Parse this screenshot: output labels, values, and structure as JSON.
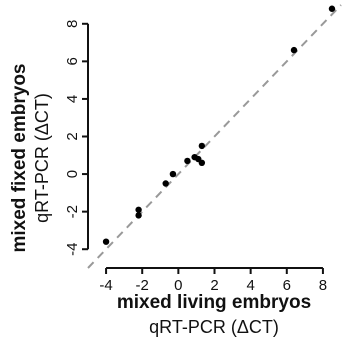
{
  "chart_data": {
    "type": "scatter",
    "xlabel": "mixed living embryos",
    "xlabel_sub": "qRT-PCR (ΔCT)",
    "ylabel": "mixed fixed embryos",
    "ylabel_sub": "qRT-PCR (ΔCT)",
    "xlim": [
      -5,
      9
    ],
    "ylim": [
      -5,
      9
    ],
    "x_ticks": [
      -4,
      -2,
      0,
      2,
      4,
      6,
      8
    ],
    "y_ticks": [
      -4,
      -2,
      0,
      2,
      4,
      6,
      8
    ],
    "grid": false,
    "reference_line": "y = x (dashed)",
    "points": [
      {
        "x": -4.0,
        "y": -3.6
      },
      {
        "x": -2.2,
        "y": -1.9
      },
      {
        "x": -2.2,
        "y": -2.2
      },
      {
        "x": -0.7,
        "y": -0.5
      },
      {
        "x": -0.3,
        "y": 0.0
      },
      {
        "x": 0.5,
        "y": 0.7
      },
      {
        "x": 0.9,
        "y": 0.9
      },
      {
        "x": 1.1,
        "y": 0.8
      },
      {
        "x": 1.3,
        "y": 0.6
      },
      {
        "x": 1.3,
        "y": 1.5
      },
      {
        "x": 6.4,
        "y": 6.6
      },
      {
        "x": 8.5,
        "y": 8.8
      }
    ]
  }
}
